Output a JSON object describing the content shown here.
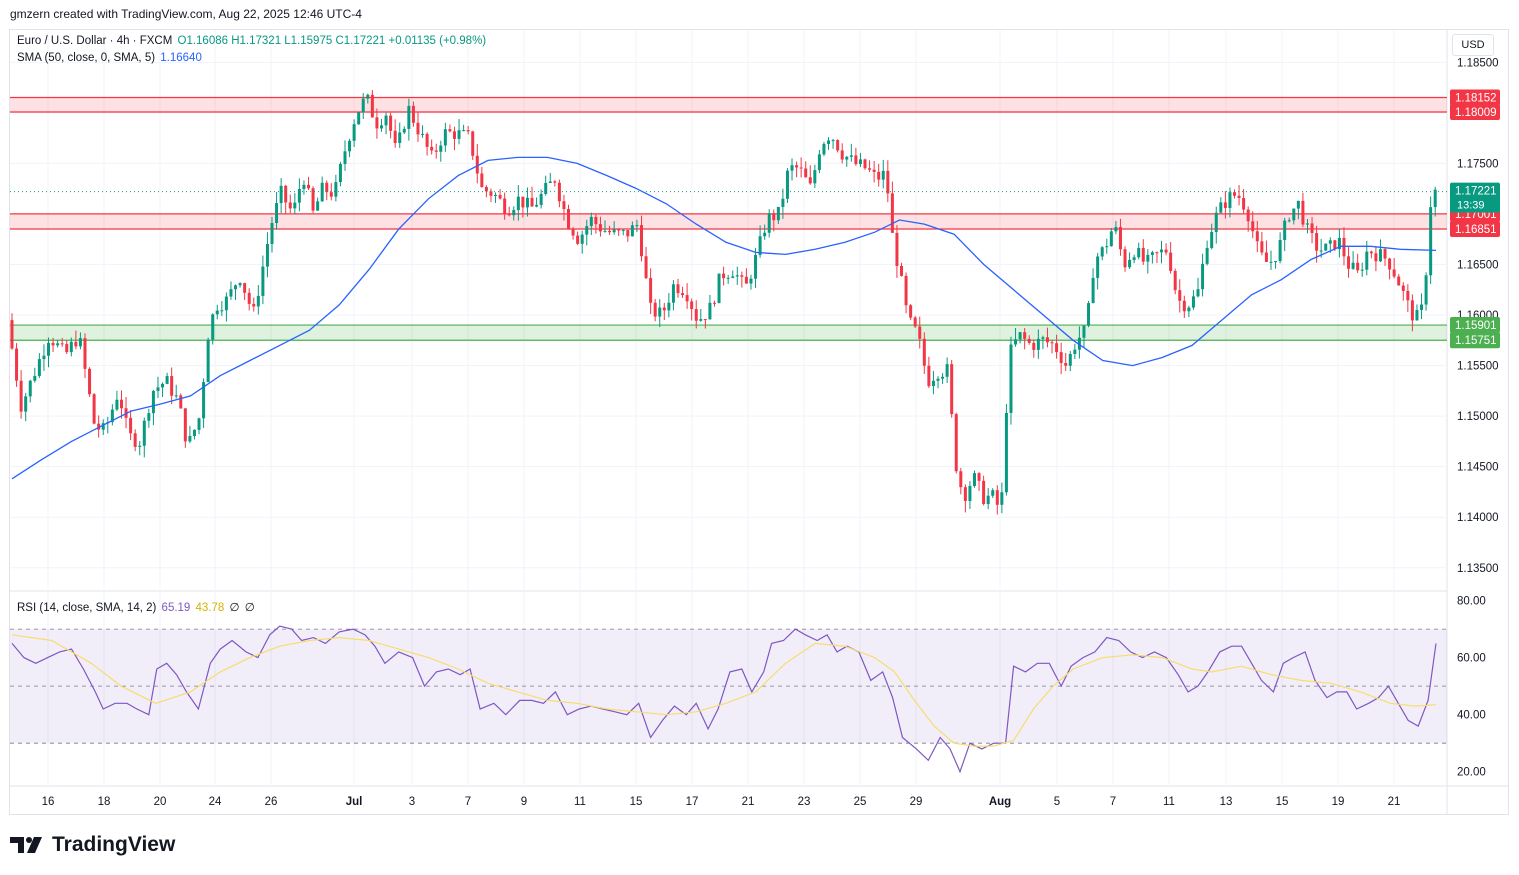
{
  "header": {
    "attribution": "gmzern created with TradingView.com, Aug 22, 2025 12:46 UTC-4"
  },
  "legend": {
    "symbol": "Euro / U.S. Dollar · 4h · FXCM",
    "ohlc": "O1.16086 H1.17321 L1.15975 C1.17221 +0.01135 (+0.98%)",
    "sma_label": "SMA (50, close, 0, SMA, 5)",
    "sma_value": "1.16640",
    "rsi_label": "RSI (14, close, SMA, 14, 2)",
    "rsi_value": "65.19",
    "rsi_sma_value": "43.78",
    "rsi_extra1": "∅",
    "rsi_extra2": "∅"
  },
  "currency": "USD",
  "brand": "TradingView",
  "colors": {
    "up": "#089981",
    "down": "#f23645",
    "sma": "#2962ff",
    "rsi": "#7e57c2",
    "rsi_sma": "#f7dc6f",
    "resistance": "#f23645",
    "support": "#4caf50"
  },
  "chart_data": {
    "type": "candlestick",
    "price_axis": {
      "ticks": [
        "1.18500",
        "1.18000",
        "1.17500",
        "1.17000",
        "1.16500",
        "1.16000",
        "1.15500",
        "1.15000",
        "1.14500",
        "1.14000",
        "1.13500"
      ],
      "range": [
        1.1327,
        1.1882
      ]
    },
    "x_axis": {
      "ticks": [
        "16",
        "18",
        "20",
        "24",
        "26",
        "Jul",
        "3",
        "7",
        "9",
        "11",
        "15",
        "17",
        "21",
        "23",
        "25",
        "29",
        "Aug",
        "5",
        "7",
        "11",
        "13",
        "15",
        "19",
        "21"
      ]
    },
    "zones": [
      {
        "kind": "resistance",
        "top": 1.18152,
        "bottom": 1.18009,
        "labels": [
          "1.18152",
          "1.18009"
        ]
      },
      {
        "kind": "resistance",
        "top": 1.17001,
        "bottom": 1.16851,
        "labels": [
          "1.17001",
          "1.16851"
        ]
      },
      {
        "kind": "support",
        "top": 1.15901,
        "bottom": 1.15751,
        "labels": [
          "1.15901",
          "1.15751"
        ]
      }
    ],
    "last_price": {
      "value": 1.17221,
      "label": "1.17221",
      "countdown": "13:39"
    },
    "path": [
      [
        0,
        1.1595
      ],
      [
        14,
        1.151
      ],
      [
        28,
        1.1545
      ],
      [
        42,
        1.158
      ],
      [
        58,
        1.156
      ],
      [
        72,
        1.158
      ],
      [
        88,
        1.149
      ],
      [
        98,
        1.1485
      ],
      [
        112,
        1.1525
      ],
      [
        122,
        1.148
      ],
      [
        134,
        1.1475
      ],
      [
        146,
        1.1525
      ],
      [
        160,
        1.1535
      ],
      [
        172,
        1.1515
      ],
      [
        182,
        1.147
      ],
      [
        194,
        1.15
      ],
      [
        202,
        1.158
      ],
      [
        210,
        1.161
      ],
      [
        222,
        1.1615
      ],
      [
        234,
        1.164
      ],
      [
        248,
        1.16
      ],
      [
        256,
        1.164
      ],
      [
        266,
        1.169
      ],
      [
        276,
        1.172
      ],
      [
        288,
        1.17
      ],
      [
        298,
        1.174
      ],
      [
        308,
        1.17
      ],
      [
        318,
        1.1725
      ],
      [
        330,
        1.172
      ],
      [
        342,
        1.177
      ],
      [
        352,
        1.18
      ],
      [
        362,
        1.1815
      ],
      [
        372,
        1.179
      ],
      [
        382,
        1.18
      ],
      [
        392,
        1.176
      ],
      [
        404,
        1.1805
      ],
      [
        416,
        1.178
      ],
      [
        428,
        1.1755
      ],
      [
        440,
        1.178
      ],
      [
        452,
        1.178
      ],
      [
        466,
        1.1775
      ],
      [
        478,
        1.1725
      ],
      [
        490,
        1.172
      ],
      [
        504,
        1.1705
      ],
      [
        516,
        1.1715
      ],
      [
        528,
        1.1705
      ],
      [
        540,
        1.172
      ],
      [
        552,
        1.1735
      ],
      [
        564,
        1.1695
      ],
      [
        576,
        1.1675
      ],
      [
        588,
        1.1695
      ],
      [
        600,
        1.1685
      ],
      [
        612,
        1.168
      ],
      [
        624,
        1.168
      ],
      [
        636,
        1.169
      ],
      [
        648,
        1.1605
      ],
      [
        660,
        1.16
      ],
      [
        672,
        1.163
      ],
      [
        684,
        1.1625
      ],
      [
        696,
        1.1595
      ],
      [
        708,
        1.1605
      ],
      [
        720,
        1.164
      ],
      [
        732,
        1.1645
      ],
      [
        744,
        1.1625
      ],
      [
        756,
        1.166
      ],
      [
        766,
        1.1695
      ],
      [
        778,
        1.17
      ],
      [
        788,
        1.1745
      ],
      [
        798,
        1.1745
      ],
      [
        810,
        1.1725
      ],
      [
        820,
        1.177
      ],
      [
        830,
        1.178
      ],
      [
        842,
        1.176
      ],
      [
        854,
        1.175
      ],
      [
        866,
        1.1745
      ],
      [
        876,
        1.1735
      ],
      [
        886,
        1.174
      ],
      [
        892,
        1.168
      ],
      [
        900,
        1.164
      ],
      [
        908,
        1.1595
      ],
      [
        918,
        1.158
      ],
      [
        928,
        1.1535
      ],
      [
        938,
        1.1545
      ],
      [
        948,
        1.1545
      ],
      [
        956,
        1.1455
      ],
      [
        964,
        1.142
      ],
      [
        974,
        1.144
      ],
      [
        984,
        1.142
      ],
      [
        994,
        1.142
      ],
      [
        1002,
        1.1405
      ],
      [
        1010,
        1.156
      ],
      [
        1020,
        1.158
      ],
      [
        1032,
        1.157
      ],
      [
        1044,
        1.1575
      ],
      [
        1056,
        1.157
      ],
      [
        1068,
        1.155
      ],
      [
        1078,
        1.1575
      ],
      [
        1088,
        1.1585
      ],
      [
        1096,
        1.1655
      ],
      [
        1106,
        1.1665
      ],
      [
        1116,
        1.169
      ],
      [
        1126,
        1.165
      ],
      [
        1136,
        1.1665
      ],
      [
        1148,
        1.165
      ],
      [
        1160,
        1.166
      ],
      [
        1170,
        1.1665
      ],
      [
        1180,
        1.1615
      ],
      [
        1190,
        1.161
      ],
      [
        1200,
        1.162
      ],
      [
        1210,
        1.1675
      ],
      [
        1220,
        1.17
      ],
      [
        1230,
        1.1715
      ],
      [
        1240,
        1.172
      ],
      [
        1250,
        1.1705
      ],
      [
        1262,
        1.166
      ],
      [
        1272,
        1.165
      ],
      [
        1282,
        1.1665
      ],
      [
        1292,
        1.17
      ],
      [
        1302,
        1.171
      ],
      [
        1312,
        1.168
      ],
      [
        1322,
        1.1665
      ],
      [
        1332,
        1.1665
      ],
      [
        1342,
        1.1675
      ],
      [
        1352,
        1.165
      ],
      [
        1362,
        1.164
      ],
      [
        1372,
        1.1665
      ],
      [
        1382,
        1.166
      ],
      [
        1392,
        1.1655
      ],
      [
        1402,
        1.1635
      ],
      [
        1412,
        1.161
      ],
      [
        1420,
        1.1595
      ],
      [
        1428,
        1.1608
      ],
      [
        1436,
        1.1722
      ]
    ],
    "sma": [
      [
        0,
        1.1438
      ],
      [
        30,
        1.1457
      ],
      [
        60,
        1.1475
      ],
      [
        90,
        1.149
      ],
      [
        120,
        1.1505
      ],
      [
        150,
        1.1512
      ],
      [
        180,
        1.152
      ],
      [
        210,
        1.154
      ],
      [
        240,
        1.1555
      ],
      [
        270,
        1.157
      ],
      [
        300,
        1.1585
      ],
      [
        330,
        1.161
      ],
      [
        360,
        1.1645
      ],
      [
        390,
        1.1685
      ],
      [
        420,
        1.1715
      ],
      [
        450,
        1.1738
      ],
      [
        480,
        1.1753
      ],
      [
        510,
        1.1756
      ],
      [
        540,
        1.1756
      ],
      [
        570,
        1.175
      ],
      [
        600,
        1.1738
      ],
      [
        630,
        1.1725
      ],
      [
        660,
        1.171
      ],
      [
        690,
        1.169
      ],
      [
        720,
        1.1672
      ],
      [
        750,
        1.1662
      ],
      [
        780,
        1.166
      ],
      [
        810,
        1.1665
      ],
      [
        840,
        1.1672
      ],
      [
        870,
        1.1682
      ],
      [
        895,
        1.1694
      ],
      [
        920,
        1.169
      ],
      [
        950,
        1.168
      ],
      [
        980,
        1.165
      ],
      [
        1010,
        1.1625
      ],
      [
        1040,
        1.16
      ],
      [
        1070,
        1.1575
      ],
      [
        1100,
        1.1555
      ],
      [
        1130,
        1.155
      ],
      [
        1160,
        1.1558
      ],
      [
        1190,
        1.157
      ],
      [
        1220,
        1.1595
      ],
      [
        1250,
        1.162
      ],
      [
        1280,
        1.1635
      ],
      [
        1310,
        1.1655
      ],
      [
        1340,
        1.1668
      ],
      [
        1370,
        1.1668
      ],
      [
        1400,
        1.1665
      ],
      [
        1436,
        1.1664
      ]
    ],
    "rsi_axis": {
      "ticks": [
        "80.00",
        "60.00",
        "40.00",
        "20.00"
      ],
      "range": [
        15,
        83
      ],
      "bands": [
        30,
        70
      ]
    },
    "rsi_path": [
      [
        0,
        65
      ],
      [
        12,
        60
      ],
      [
        24,
        58
      ],
      [
        36,
        60
      ],
      [
        48,
        62
      ],
      [
        60,
        63
      ],
      [
        72,
        56
      ],
      [
        84,
        48
      ],
      [
        92,
        42
      ],
      [
        104,
        44
      ],
      [
        116,
        44
      ],
      [
        126,
        42
      ],
      [
        138,
        40
      ],
      [
        146,
        56
      ],
      [
        156,
        58
      ],
      [
        166,
        54
      ],
      [
        176,
        48
      ],
      [
        188,
        42
      ],
      [
        200,
        58
      ],
      [
        210,
        63
      ],
      [
        222,
        66
      ],
      [
        236,
        62
      ],
      [
        248,
        60
      ],
      [
        260,
        68
      ],
      [
        270,
        71
      ],
      [
        282,
        70
      ],
      [
        292,
        66
      ],
      [
        304,
        67
      ],
      [
        316,
        65
      ],
      [
        330,
        69
      ],
      [
        344,
        70
      ],
      [
        356,
        68
      ],
      [
        366,
        64
      ],
      [
        376,
        58
      ],
      [
        390,
        62
      ],
      [
        404,
        60
      ],
      [
        416,
        50
      ],
      [
        428,
        55
      ],
      [
        440,
        56
      ],
      [
        452,
        54
      ],
      [
        462,
        56
      ],
      [
        472,
        42
      ],
      [
        486,
        44
      ],
      [
        498,
        40
      ],
      [
        512,
        45
      ],
      [
        524,
        45
      ],
      [
        536,
        44
      ],
      [
        548,
        48
      ],
      [
        560,
        40
      ],
      [
        572,
        42
      ],
      [
        584,
        43
      ],
      [
        596,
        42
      ],
      [
        608,
        41
      ],
      [
        620,
        40
      ],
      [
        632,
        44
      ],
      [
        644,
        32
      ],
      [
        656,
        38
      ],
      [
        668,
        43
      ],
      [
        680,
        40
      ],
      [
        690,
        44
      ],
      [
        702,
        35
      ],
      [
        712,
        42
      ],
      [
        724,
        55
      ],
      [
        736,
        56
      ],
      [
        746,
        48
      ],
      [
        758,
        55
      ],
      [
        766,
        65
      ],
      [
        778,
        66
      ],
      [
        790,
        70
      ],
      [
        800,
        68
      ],
      [
        812,
        66
      ],
      [
        822,
        68
      ],
      [
        832,
        62
      ],
      [
        842,
        64
      ],
      [
        854,
        62
      ],
      [
        866,
        52
      ],
      [
        878,
        55
      ],
      [
        888,
        46
      ],
      [
        898,
        32
      ],
      [
        912,
        28
      ],
      [
        924,
        24
      ],
      [
        936,
        32
      ],
      [
        946,
        28
      ],
      [
        956,
        20
      ],
      [
        966,
        30
      ],
      [
        978,
        28
      ],
      [
        990,
        30
      ],
      [
        1002,
        30
      ],
      [
        1010,
        57
      ],
      [
        1022,
        55
      ],
      [
        1034,
        58
      ],
      [
        1046,
        58
      ],
      [
        1058,
        50
      ],
      [
        1068,
        57
      ],
      [
        1080,
        60
      ],
      [
        1092,
        62
      ],
      [
        1104,
        67
      ],
      [
        1116,
        66
      ],
      [
        1128,
        62
      ],
      [
        1140,
        60
      ],
      [
        1152,
        62
      ],
      [
        1164,
        60
      ],
      [
        1176,
        54
      ],
      [
        1186,
        48
      ],
      [
        1196,
        50
      ],
      [
        1206,
        55
      ],
      [
        1218,
        62
      ],
      [
        1230,
        64
      ],
      [
        1240,
        64
      ],
      [
        1250,
        58
      ],
      [
        1260,
        52
      ],
      [
        1272,
        48
      ],
      [
        1282,
        58
      ],
      [
        1292,
        60
      ],
      [
        1304,
        62
      ],
      [
        1314,
        52
      ],
      [
        1326,
        46
      ],
      [
        1336,
        48
      ],
      [
        1346,
        48
      ],
      [
        1356,
        42
      ],
      [
        1368,
        44
      ],
      [
        1378,
        46
      ],
      [
        1388,
        50
      ],
      [
        1398,
        44
      ],
      [
        1408,
        38
      ],
      [
        1418,
        36
      ],
      [
        1428,
        45
      ],
      [
        1436,
        65
      ]
    ],
    "rsi_sma": [
      [
        0,
        68
      ],
      [
        40,
        66
      ],
      [
        80,
        58
      ],
      [
        110,
        50
      ],
      [
        145,
        44
      ],
      [
        180,
        48
      ],
      [
        210,
        55
      ],
      [
        240,
        60
      ],
      [
        270,
        64
      ],
      [
        300,
        66
      ],
      [
        330,
        67
      ],
      [
        360,
        66
      ],
      [
        390,
        63
      ],
      [
        420,
        60
      ],
      [
        450,
        56
      ],
      [
        480,
        51
      ],
      [
        510,
        48
      ],
      [
        540,
        45
      ],
      [
        570,
        44
      ],
      [
        600,
        42
      ],
      [
        630,
        41
      ],
      [
        660,
        40
      ],
      [
        690,
        41
      ],
      [
        720,
        44
      ],
      [
        750,
        48
      ],
      [
        780,
        58
      ],
      [
        810,
        65
      ],
      [
        840,
        64
      ],
      [
        870,
        60
      ],
      [
        890,
        55
      ],
      [
        910,
        45
      ],
      [
        930,
        36
      ],
      [
        950,
        30
      ],
      [
        970,
        29
      ],
      [
        990,
        29
      ],
      [
        1010,
        31
      ],
      [
        1030,
        42
      ],
      [
        1050,
        50
      ],
      [
        1070,
        56
      ],
      [
        1100,
        60
      ],
      [
        1130,
        61
      ],
      [
        1160,
        60
      ],
      [
        1190,
        56
      ],
      [
        1210,
        55
      ],
      [
        1240,
        57
      ],
      [
        1270,
        54
      ],
      [
        1300,
        52
      ],
      [
        1330,
        51
      ],
      [
        1360,
        48
      ],
      [
        1390,
        44
      ],
      [
        1415,
        43
      ],
      [
        1436,
        43.5
      ]
    ]
  }
}
